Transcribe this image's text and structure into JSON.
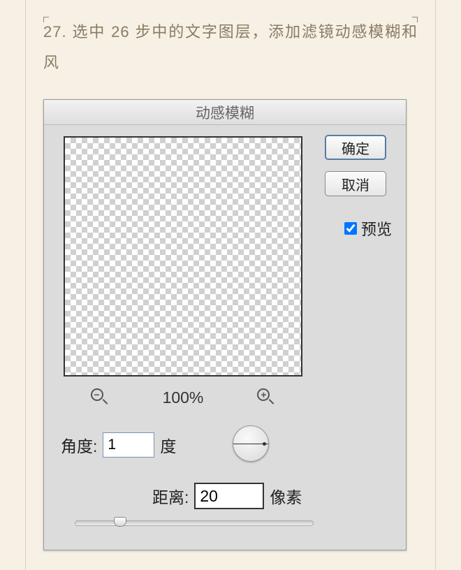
{
  "instruction": "27. 选中 26 步中的文字图层，添加滤镜动感模糊和风",
  "dialog": {
    "title": "动感模糊",
    "ok_label": "确定",
    "cancel_label": "取消",
    "preview_label": "预览",
    "preview_checked": true,
    "zoom_label": "100%",
    "angle_label": "角度:",
    "angle_value": "1",
    "angle_unit": "度",
    "distance_label": "距离:",
    "distance_value": "20",
    "distance_unit": "像素"
  },
  "styling": {
    "page_bg": "#f7f0e5",
    "instruction_color": "#8a7c64",
    "dialog_bg": "#dcdcdc",
    "titlebar_grad_top": "#f2f2f2",
    "titlebar_grad_bottom": "#dedede",
    "title_color": "#666666",
    "button_border_primary": "#5a7aa8",
    "input_border": "#7a91b5",
    "checker_light": "#ffffff",
    "checker_dark": "#d0d0d0",
    "slider_thumb_pct": 16
  }
}
